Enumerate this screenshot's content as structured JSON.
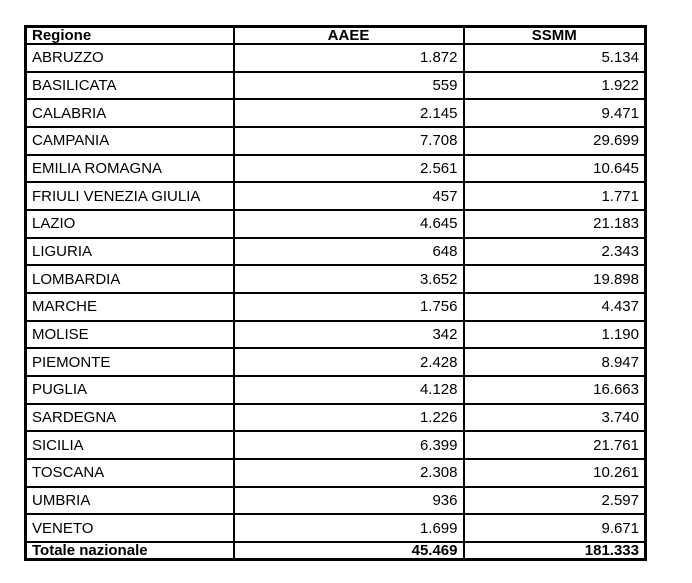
{
  "colors": {
    "background": "#ffffff",
    "border": "#000000",
    "text": "#000000"
  },
  "table": {
    "columns": [
      {
        "label": "Regione",
        "align": "left"
      },
      {
        "label": "AAEE",
        "align": "center"
      },
      {
        "label": "SSMM",
        "align": "center"
      }
    ],
    "rows": [
      {
        "regione": "ABRUZZO",
        "aaee": "1.872",
        "ssmm": "5.134"
      },
      {
        "regione": "BASILICATA",
        "aaee": "559",
        "ssmm": "1.922"
      },
      {
        "regione": "CALABRIA",
        "aaee": "2.145",
        "ssmm": "9.471"
      },
      {
        "regione": "CAMPANIA",
        "aaee": "7.708",
        "ssmm": "29.699"
      },
      {
        "regione": "EMILIA ROMAGNA",
        "aaee": "2.561",
        "ssmm": "10.645"
      },
      {
        "regione": "FRIULI VENEZIA GIULIA",
        "aaee": "457",
        "ssmm": "1.771"
      },
      {
        "regione": "LAZIO",
        "aaee": "4.645",
        "ssmm": "21.183"
      },
      {
        "regione": "LIGURIA",
        "aaee": "648",
        "ssmm": "2.343"
      },
      {
        "regione": "LOMBARDIA",
        "aaee": "3.652",
        "ssmm": "19.898"
      },
      {
        "regione": "MARCHE",
        "aaee": "1.756",
        "ssmm": "4.437"
      },
      {
        "regione": "MOLISE",
        "aaee": "342",
        "ssmm": "1.190"
      },
      {
        "regione": "PIEMONTE",
        "aaee": "2.428",
        "ssmm": "8.947"
      },
      {
        "regione": "PUGLIA",
        "aaee": "4.128",
        "ssmm": "16.663"
      },
      {
        "regione": "SARDEGNA",
        "aaee": "1.226",
        "ssmm": "3.740"
      },
      {
        "regione": "SICILIA",
        "aaee": "6.399",
        "ssmm": "21.761"
      },
      {
        "regione": "TOSCANA",
        "aaee": "2.308",
        "ssmm": "10.261"
      },
      {
        "regione": "UMBRIA",
        "aaee": "936",
        "ssmm": "2.597"
      },
      {
        "regione": "VENETO",
        "aaee": "1.699",
        "ssmm": "9.671"
      }
    ],
    "total_row": {
      "regione": "Totale nazionale",
      "aaee": "45.469",
      "ssmm": "181.333"
    }
  }
}
